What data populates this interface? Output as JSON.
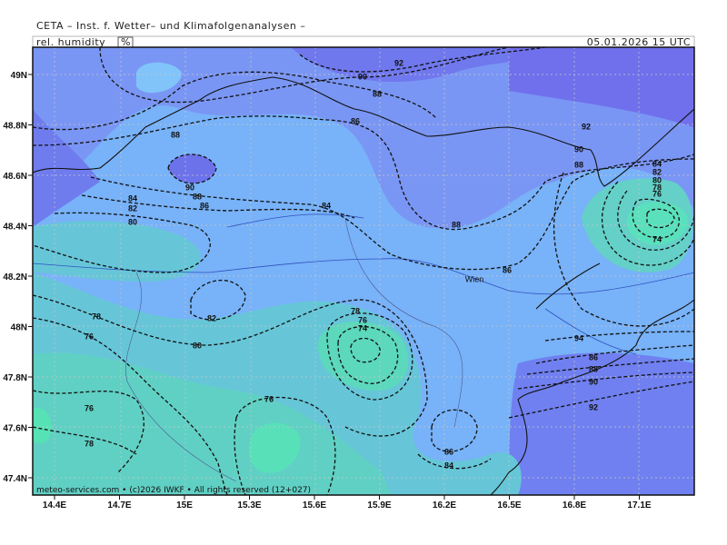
{
  "header": {
    "title": "CETA – Inst. f. Wetter– und Klimafolgenanalysen –",
    "variable": "rel. humidity",
    "unit": "%",
    "valid": "05.01.2026 15 UTC"
  },
  "map": {
    "lon_labels": [
      "14.4E",
      "14.7E",
      "15E",
      "15.3E",
      "15.6E",
      "15.9E",
      "16.2E",
      "16.5E",
      "16.8E",
      "17.1E"
    ],
    "lat_labels": [
      "49N",
      "48.8N",
      "48.6N",
      "48.4N",
      "48.2N",
      "48N",
      "47.8N",
      "47.6N",
      "47.4N"
    ],
    "places": [
      "Wien"
    ],
    "contour_labels": [
      92,
      90,
      88,
      86,
      88,
      92,
      90,
      88,
      84,
      82,
      80,
      78,
      76,
      74,
      90,
      88,
      86,
      84,
      82,
      80,
      84,
      88,
      86,
      82,
      80,
      78,
      76,
      78,
      76,
      74,
      94,
      86,
      88,
      90,
      92,
      76,
      76,
      78,
      86,
      84
    ]
  },
  "footer": "meteo-services.com • (c)2026 IWKF • All rights reserved (12+027)"
}
